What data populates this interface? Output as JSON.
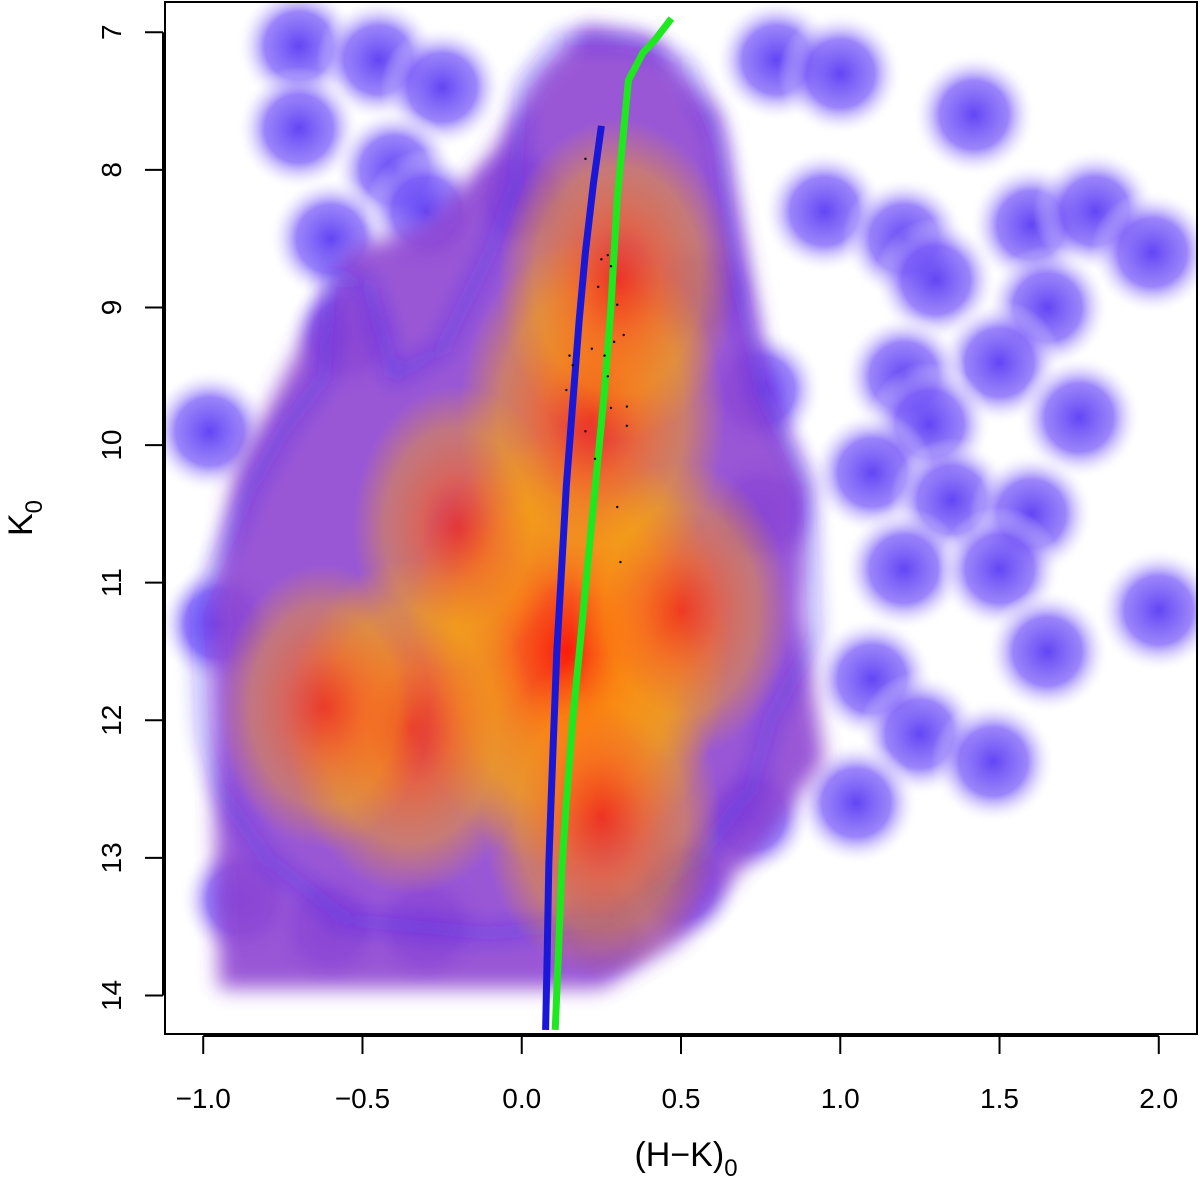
{
  "chart_data": {
    "type": "heatmap",
    "title": "",
    "xlabel": "(H−K)",
    "xlabel_subscript": "0",
    "ylabel": "K",
    "ylabel_subscript": "0",
    "xlim": [
      -1.12,
      2.12
    ],
    "ylim": [
      14.28,
      6.78
    ],
    "y_inverted": true,
    "grid": false,
    "x_ticks": [
      -1.0,
      -0.5,
      0.0,
      0.5,
      1.0,
      1.5,
      2.0
    ],
    "x_tick_labels": [
      "−1.0",
      "−0.5",
      "0.0",
      "0.5",
      "1.0",
      "1.5",
      "2.0"
    ],
    "y_ticks": [
      7,
      8,
      9,
      10,
      11,
      12,
      13,
      14
    ],
    "y_tick_labels": [
      "7",
      "8",
      "9",
      "10",
      "11",
      "12",
      "13",
      "14"
    ],
    "density_colormap": [
      "#ffffff",
      "#9a80ff",
      "#5a3cf4",
      "#2a1aff",
      "#8a3fd0",
      "#d9567e",
      "#ff8a2a",
      "#ffa500",
      "#ff5a10",
      "#ff1a00"
    ],
    "density_peaks": [
      {
        "x": 0.14,
        "y": 11.5,
        "weight": 1.0
      },
      {
        "x": 0.22,
        "y": 9.8,
        "weight": 0.7
      },
      {
        "x": 0.3,
        "y": 8.8,
        "weight": 0.55
      },
      {
        "x": -0.35,
        "y": 12.05,
        "weight": 0.6
      },
      {
        "x": -0.62,
        "y": 11.9,
        "weight": 0.4
      },
      {
        "x": 0.25,
        "y": 12.7,
        "weight": 0.55
      },
      {
        "x": 0.5,
        "y": 11.2,
        "weight": 0.45
      },
      {
        "x": -0.2,
        "y": 10.6,
        "weight": 0.4
      }
    ],
    "density_blobs": [
      {
        "x": -0.7,
        "y": 7.1
      },
      {
        "x": -0.45,
        "y": 7.2
      },
      {
        "x": -0.25,
        "y": 7.4
      },
      {
        "x": -0.7,
        "y": 7.7
      },
      {
        "x": -0.4,
        "y": 8.0
      },
      {
        "x": -0.6,
        "y": 8.5
      },
      {
        "x": -0.3,
        "y": 8.3
      },
      {
        "x": 0.8,
        "y": 7.2
      },
      {
        "x": 1.0,
        "y": 7.3
      },
      {
        "x": 0.95,
        "y": 8.3
      },
      {
        "x": 1.2,
        "y": 8.5
      },
      {
        "x": 1.42,
        "y": 7.6
      },
      {
        "x": 1.6,
        "y": 8.4
      },
      {
        "x": 1.8,
        "y": 8.3
      },
      {
        "x": 1.98,
        "y": 8.6
      },
      {
        "x": 1.3,
        "y": 8.8
      },
      {
        "x": 1.65,
        "y": 9.0
      },
      {
        "x": 1.5,
        "y": 9.4
      },
      {
        "x": 1.2,
        "y": 9.5
      },
      {
        "x": 1.28,
        "y": 9.85
      },
      {
        "x": 1.75,
        "y": 9.8
      },
      {
        "x": 1.1,
        "y": 10.2
      },
      {
        "x": 1.35,
        "y": 10.4
      },
      {
        "x": 1.6,
        "y": 10.5
      },
      {
        "x": 1.2,
        "y": 10.9
      },
      {
        "x": 1.5,
        "y": 10.9
      },
      {
        "x": 1.65,
        "y": 11.5
      },
      {
        "x": 2.0,
        "y": 11.2
      },
      {
        "x": 1.1,
        "y": 11.7
      },
      {
        "x": 1.25,
        "y": 12.1
      },
      {
        "x": 1.48,
        "y": 12.3
      },
      {
        "x": 1.05,
        "y": 12.6
      },
      {
        "x": -0.98,
        "y": 9.9
      },
      {
        "x": -0.95,
        "y": 11.3
      },
      {
        "x": -0.88,
        "y": 13.3
      },
      {
        "x": -0.6,
        "y": 13.5
      },
      {
        "x": -0.3,
        "y": 13.5
      },
      {
        "x": 0.25,
        "y": 13.5
      },
      {
        "x": 0.5,
        "y": 13.2
      },
      {
        "x": 0.72,
        "y": 12.7
      },
      {
        "x": 0.75,
        "y": 9.6
      },
      {
        "x": 0.75,
        "y": 10.5
      },
      {
        "x": -0.55,
        "y": 9.2
      },
      {
        "x": 0.0,
        "y": 8.2
      },
      {
        "x": 0.55,
        "y": 8.9
      }
    ],
    "series": [
      {
        "color": "#1a18d8",
        "x": [
          0.075,
          0.08,
          0.085,
          0.092,
          0.1,
          0.11,
          0.125,
          0.14,
          0.16,
          0.18,
          0.2,
          0.225,
          0.25
        ],
        "y": [
          14.25,
          13.7,
          13.05,
          12.6,
          12.1,
          11.5,
          10.9,
          10.3,
          9.7,
          9.1,
          8.6,
          8.1,
          7.68
        ]
      },
      {
        "color": "#1ee81e",
        "x": [
          0.105,
          0.115,
          0.125,
          0.14,
          0.16,
          0.185,
          0.21,
          0.235,
          0.26,
          0.28,
          0.3,
          0.335,
          0.38,
          0.42,
          0.47
        ],
        "y": [
          14.25,
          13.7,
          13.1,
          12.6,
          12.0,
          11.4,
          10.8,
          10.2,
          9.6,
          9.0,
          8.2,
          7.35,
          7.15,
          7.05,
          6.9
        ]
      }
    ],
    "points": [
      {
        "x": 0.2,
        "y": 7.92
      },
      {
        "x": 0.25,
        "y": 8.65
      },
      {
        "x": 0.27,
        "y": 8.62
      },
      {
        "x": 0.28,
        "y": 8.7
      },
      {
        "x": 0.24,
        "y": 8.85
      },
      {
        "x": 0.3,
        "y": 8.98
      },
      {
        "x": 0.32,
        "y": 9.2
      },
      {
        "x": 0.29,
        "y": 9.25
      },
      {
        "x": 0.15,
        "y": 9.35
      },
      {
        "x": 0.22,
        "y": 9.3
      },
      {
        "x": 0.26,
        "y": 9.35
      },
      {
        "x": 0.16,
        "y": 9.42
      },
      {
        "x": 0.14,
        "y": 9.6
      },
      {
        "x": 0.27,
        "y": 9.5
      },
      {
        "x": 0.33,
        "y": 9.72
      },
      {
        "x": 0.28,
        "y": 9.73
      },
      {
        "x": 0.2,
        "y": 9.9
      },
      {
        "x": 0.33,
        "y": 9.86
      },
      {
        "x": 0.23,
        "y": 10.1
      },
      {
        "x": 0.3,
        "y": 10.45
      },
      {
        "x": 0.31,
        "y": 10.85
      }
    ]
  }
}
